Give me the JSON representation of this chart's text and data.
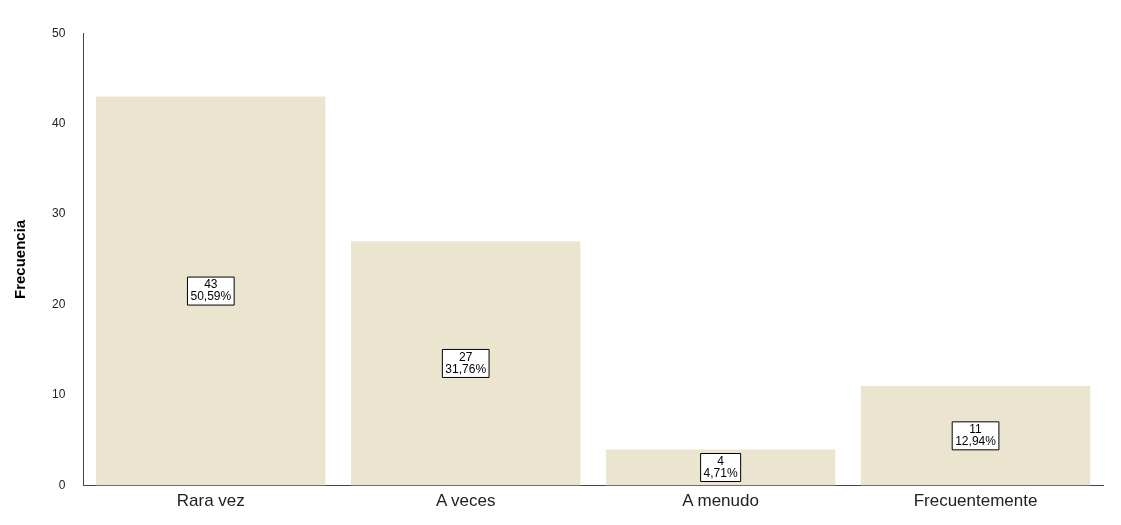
{
  "chart_data": {
    "type": "bar",
    "ylabel": "Frecuencia",
    "categories": [
      "Rara vez",
      "A veces",
      "A menudo",
      "Frecuentemente"
    ],
    "values": [
      43,
      27,
      4,
      11
    ],
    "color": "#ebe5d0",
    "value_labels": [
      "43\n50,59%",
      "27\n31,76%",
      "4\n4,71%",
      "11\n12,94%"
    ],
    "ylim": [
      0,
      50
    ],
    "yticks": [
      0,
      10,
      20,
      30,
      40,
      50
    ],
    "grid": false,
    "legend": false
  }
}
